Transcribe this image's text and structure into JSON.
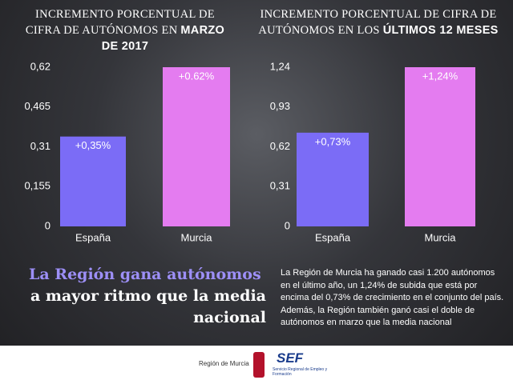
{
  "chart_data": [
    {
      "type": "bar",
      "title": "INCREMENTO PORCENTUAL DE CIFRA DE AUTÓNOMOS EN",
      "title_highlight": "MARZO DE 2017",
      "categories": [
        "España",
        "Murcia"
      ],
      "values": [
        0.35,
        0.62
      ],
      "value_labels": [
        "+0,35%",
        "+0.62%"
      ],
      "colors": [
        "#7b6cf6",
        "#e47cf0"
      ],
      "ylim": [
        0,
        0.62
      ],
      "yticks": [
        0,
        {
          "value": 0.155,
          "label": "0,155"
        },
        {
          "value": 0.31,
          "label": "0,31"
        },
        {
          "value": 0.465,
          "label": "0,465"
        },
        {
          "value": 0.62,
          "label": "0,62"
        }
      ]
    },
    {
      "type": "bar",
      "title": "INCREMENTO PORCENTUAL DE CIFRA DE AUTÓNOMOS EN LOS",
      "title_highlight": "ÚLTIMOS 12 MESES",
      "categories": [
        "España",
        "Murcia"
      ],
      "values": [
        0.73,
        1.24
      ],
      "value_labels": [
        "+0,73%",
        "+1,24%"
      ],
      "colors": [
        "#7b6cf6",
        "#e47cf0"
      ],
      "ylim": [
        0,
        1.24
      ],
      "yticks": [
        0,
        {
          "value": 0.31,
          "label": "0,31"
        },
        {
          "value": 0.62,
          "label": "0,62"
        },
        {
          "value": 0.93,
          "label": "0,93"
        },
        {
          "value": 1.24,
          "label": "1,24"
        }
      ]
    }
  ],
  "headline": {
    "highlight": "La Región gana autónomos",
    "rest": "a mayor ritmo que la media nacional"
  },
  "paragraph": "La Región de Murcia ha ganado casi 1.200 autónomos en el último año, un 1,24% de subida que está por encima del 0,73% de crecimiento en el conjunto del país. Además, la Región también ganó casi el doble de autónomos en marzo que la media nacional",
  "footer": {
    "logo1": "Región de Murcia",
    "logo2": "SEF",
    "logo2_sub": "Servicio Regional de Empleo y Formación"
  }
}
